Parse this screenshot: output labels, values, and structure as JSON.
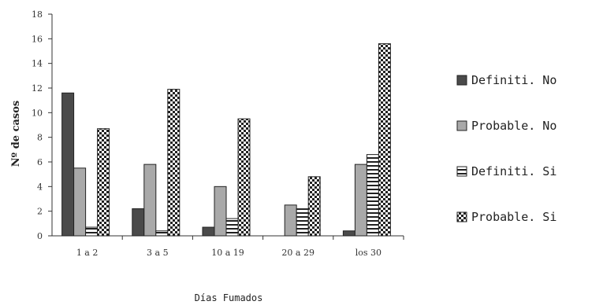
{
  "chart_data": {
    "type": "bar",
    "title": "",
    "xlabel": "Días Fumados",
    "ylabel": "Nº de casos",
    "ylim": [
      0,
      18
    ],
    "yticks": [
      0,
      2,
      4,
      6,
      8,
      10,
      12,
      14,
      16,
      18
    ],
    "categories": [
      "1 a 2",
      "3 a 5",
      "10 a 19",
      "20 a 29",
      "los 30"
    ],
    "series": [
      {
        "name": "Definiti. No",
        "values": [
          11.6,
          2.2,
          0.7,
          0,
          0.4
        ],
        "fill": "dark"
      },
      {
        "name": "Probable. No",
        "values": [
          5.5,
          5.8,
          4.0,
          2.5,
          5.8
        ],
        "fill": "light"
      },
      {
        "name": "Definiti. Si",
        "values": [
          0.7,
          0.4,
          1.4,
          2.2,
          6.6
        ],
        "fill": "hstripe"
      },
      {
        "name": "Probable. Si",
        "values": [
          8.7,
          11.9,
          9.5,
          4.8,
          15.6
        ],
        "fill": "checker"
      }
    ],
    "grid": false,
    "legend": "right",
    "colors": {
      "dark": "#4a4a4a",
      "light": "#a9a9a9",
      "stroke": "#222222",
      "axis": "#333333"
    }
  }
}
